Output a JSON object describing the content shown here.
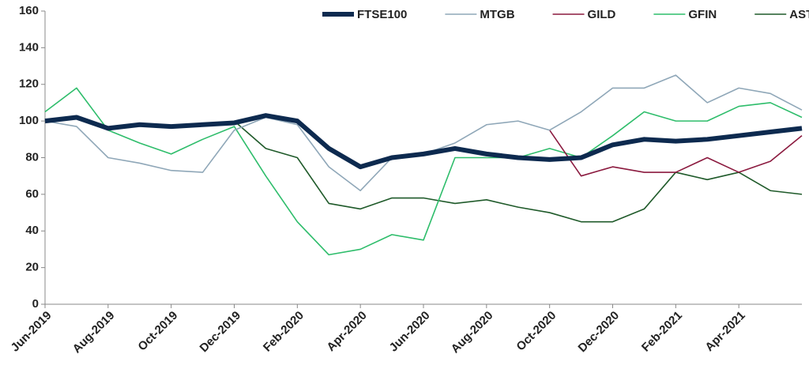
{
  "chart_data": {
    "type": "line",
    "x": [
      "Jun-2019",
      "Jul-2019",
      "Aug-2019",
      "Sep-2019",
      "Oct-2019",
      "Nov-2019",
      "Dec-2019",
      "Jan-2020",
      "Feb-2020",
      "Mar-2020",
      "Apr-2020",
      "May-2020",
      "Jun-2020",
      "Jul-2020",
      "Aug-2020",
      "Sep-2020",
      "Oct-2020",
      "Nov-2020",
      "Dec-2020",
      "Jan-2021",
      "Feb-2021",
      "Mar-2021",
      "Apr-2021",
      "May-2021",
      "Jun-2021"
    ],
    "series": [
      {
        "name": "FTSE100",
        "color": "#0d2a4f",
        "values": [
          100,
          102,
          96,
          98,
          97,
          98,
          99,
          103,
          100,
          85,
          75,
          80,
          82,
          85,
          82,
          80,
          79,
          80,
          87,
          90,
          89,
          90,
          92,
          94,
          96
        ]
      },
      {
        "name": "MTGB",
        "color": "#8fa7b8",
        "values": [
          100,
          97,
          80,
          77,
          73,
          72,
          95,
          102,
          98,
          75,
          62,
          80,
          82,
          88,
          98,
          100,
          95,
          105,
          118,
          118,
          125,
          110,
          118,
          115,
          106
        ]
      },
      {
        "name": "GILD",
        "color": "#8b1a3f",
        "values": [
          null,
          null,
          null,
          null,
          null,
          null,
          null,
          null,
          null,
          null,
          null,
          null,
          null,
          null,
          null,
          null,
          95,
          70,
          75,
          72,
          72,
          80,
          72,
          78,
          92
        ]
      },
      {
        "name": "GFIN",
        "color": "#2ebd6b",
        "values": [
          105,
          118,
          95,
          88,
          82,
          90,
          97,
          70,
          45,
          27,
          30,
          38,
          35,
          80,
          80,
          80,
          85,
          80,
          92,
          105,
          100,
          100,
          108,
          110,
          102
        ]
      },
      {
        "name": "ASTRLS",
        "color": "#1f5a2a",
        "values": [
          null,
          null,
          null,
          null,
          null,
          null,
          100,
          85,
          80,
          55,
          52,
          58,
          58,
          55,
          57,
          53,
          50,
          45,
          45,
          52,
          72,
          68,
          72,
          62,
          60
        ]
      }
    ],
    "xlim": [
      "Jun-2019",
      "Jun-2021"
    ],
    "xticks": [
      "Jun-2019",
      "Aug-2019",
      "Oct-2019",
      "Dec-2019",
      "Feb-2020",
      "Apr-2020",
      "Jun-2020",
      "Aug-2020",
      "Oct-2020",
      "Dec-2020",
      "Feb-2021",
      "Apr-2021"
    ],
    "ylim": [
      0,
      160
    ],
    "yticks": [
      0,
      20,
      40,
      60,
      80,
      100,
      120,
      140,
      160
    ],
    "grid": false,
    "legend": "top"
  }
}
